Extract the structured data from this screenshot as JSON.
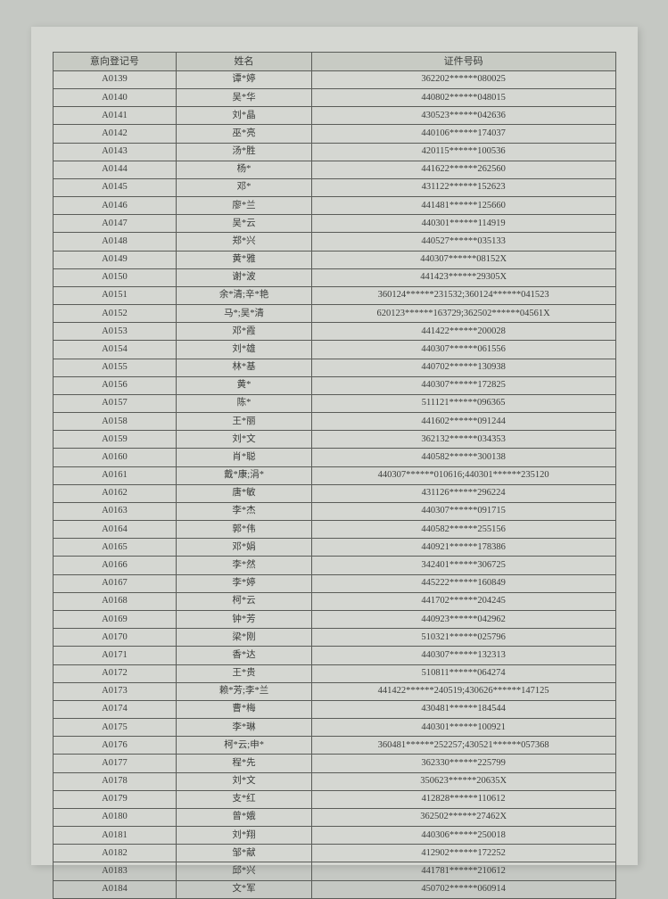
{
  "table": {
    "headers": {
      "reg": "意向登记号",
      "name": "姓名",
      "id": "证件号码"
    },
    "rows": [
      {
        "reg": "A0139",
        "name": "谭*婷",
        "id": "362202******080025"
      },
      {
        "reg": "A0140",
        "name": "吴*华",
        "id": "440802******048015"
      },
      {
        "reg": "A0141",
        "name": "刘*晶",
        "id": "430523******042636"
      },
      {
        "reg": "A0142",
        "name": "巫*亮",
        "id": "440106******174037"
      },
      {
        "reg": "A0143",
        "name": "汤*胜",
        "id": "420115******100536"
      },
      {
        "reg": "A0144",
        "name": "杨*",
        "id": "441622******262560"
      },
      {
        "reg": "A0145",
        "name": "邓*",
        "id": "431122******152623"
      },
      {
        "reg": "A0146",
        "name": "廖*兰",
        "id": "441481******125660"
      },
      {
        "reg": "A0147",
        "name": "吴*云",
        "id": "440301******114919"
      },
      {
        "reg": "A0148",
        "name": "郑*兴",
        "id": "440527******035133"
      },
      {
        "reg": "A0149",
        "name": "黄*雅",
        "id": "440307******08152X"
      },
      {
        "reg": "A0150",
        "name": "谢*波",
        "id": "441423******29305X"
      },
      {
        "reg": "A0151",
        "name": "余*清;辛*艳",
        "id": "360124******231532;360124******041523"
      },
      {
        "reg": "A0152",
        "name": "马*;吴*清",
        "id": "620123******163729;362502******04561X"
      },
      {
        "reg": "A0153",
        "name": "邓*霞",
        "id": "441422******200028"
      },
      {
        "reg": "A0154",
        "name": "刘*雄",
        "id": "440307******061556"
      },
      {
        "reg": "A0155",
        "name": "林*基",
        "id": "440702******130938"
      },
      {
        "reg": "A0156",
        "name": "黄*",
        "id": "440307******172825"
      },
      {
        "reg": "A0157",
        "name": "陈*",
        "id": "511121******096365"
      },
      {
        "reg": "A0158",
        "name": "王*丽",
        "id": "441602******091244"
      },
      {
        "reg": "A0159",
        "name": "刘*文",
        "id": "362132******034353"
      },
      {
        "reg": "A0160",
        "name": "肖*聪",
        "id": "440582******300138"
      },
      {
        "reg": "A0161",
        "name": "戴*康;涓*",
        "id": "440307******010616;440301******235120"
      },
      {
        "reg": "A0162",
        "name": "唐*敏",
        "id": "431126******296224"
      },
      {
        "reg": "A0163",
        "name": "李*杰",
        "id": "440307******091715"
      },
      {
        "reg": "A0164",
        "name": "郭*伟",
        "id": "440582******255156"
      },
      {
        "reg": "A0165",
        "name": "邓*娟",
        "id": "440921******178386"
      },
      {
        "reg": "A0166",
        "name": "李*然",
        "id": "342401******306725"
      },
      {
        "reg": "A0167",
        "name": "李*婷",
        "id": "445222******160849"
      },
      {
        "reg": "A0168",
        "name": "柯*云",
        "id": "441702******204245"
      },
      {
        "reg": "A0169",
        "name": "钟*芳",
        "id": "440923******042962"
      },
      {
        "reg": "A0170",
        "name": "梁*刚",
        "id": "510321******025796"
      },
      {
        "reg": "A0171",
        "name": "香*达",
        "id": "440307******132313"
      },
      {
        "reg": "A0172",
        "name": "王*贵",
        "id": "510811******064274"
      },
      {
        "reg": "A0173",
        "name": "赖*芳;李*兰",
        "id": "441422******240519;430626******147125"
      },
      {
        "reg": "A0174",
        "name": "曹*梅",
        "id": "430481******184544"
      },
      {
        "reg": "A0175",
        "name": "李*琳",
        "id": "440301******100921"
      },
      {
        "reg": "A0176",
        "name": "柯*云;申*",
        "id": "360481******252257;430521******057368"
      },
      {
        "reg": "A0177",
        "name": "程*先",
        "id": "362330******225799"
      },
      {
        "reg": "A0178",
        "name": "刘*文",
        "id": "350623******20635X"
      },
      {
        "reg": "A0179",
        "name": "支*红",
        "id": "412828******110612"
      },
      {
        "reg": "A0180",
        "name": "曾*娥",
        "id": "362502******27462X"
      },
      {
        "reg": "A0181",
        "name": "刘*翔",
        "id": "440306******250018"
      },
      {
        "reg": "A0182",
        "name": "邹*献",
        "id": "412902******172252"
      },
      {
        "reg": "A0183",
        "name": "邱*兴",
        "id": "441781******210612"
      },
      {
        "reg": "A0184",
        "name": "文*军",
        "id": "450702******060914"
      }
    ]
  }
}
